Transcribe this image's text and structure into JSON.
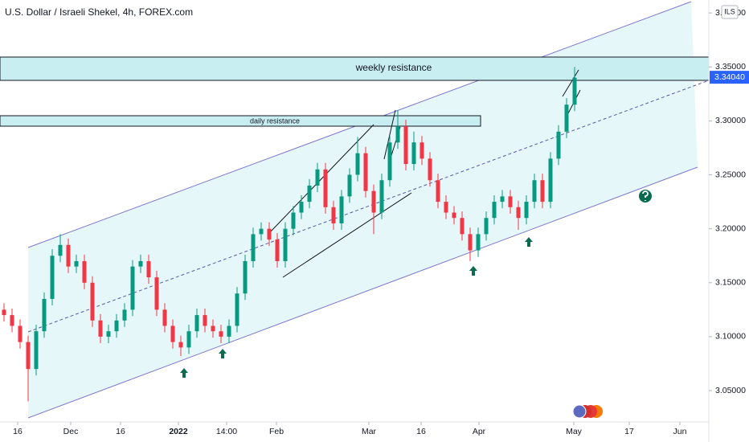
{
  "chart_data": {
    "type": "candlestick",
    "title": "U.S. Dollar / Israeli Shekel, 4h, FOREX.com",
    "currency": "ILS",
    "annotations": {
      "weekly": "weekly resistance",
      "daily": "daily resistance"
    },
    "up_color": "#089981",
    "down_color": "#f23645",
    "xlim": [
      -0.5,
      87.7
    ],
    "xticks": [
      {
        "value": 1.7,
        "label": "16"
      },
      {
        "value": 8.3,
        "label": "Dec"
      },
      {
        "value": 14.5,
        "label": "16"
      },
      {
        "value": 21.7,
        "label": "2022"
      },
      {
        "value": 27.7,
        "label": "14:00"
      },
      {
        "value": 33.9,
        "label": "Feb"
      },
      {
        "value": 45.4,
        "label": "Mar"
      },
      {
        "value": 51.9,
        "label": "16"
      },
      {
        "value": 59.1,
        "label": "Apr"
      },
      {
        "value": 70.9,
        "label": "May"
      },
      {
        "value": 77.8,
        "label": "17"
      },
      {
        "value": 84.1,
        "label": "Jun"
      }
    ],
    "ylim": [
      3.021,
      3.412
    ],
    "yticks": [
      {
        "value": 3.05,
        "label": "3.05000"
      },
      {
        "value": 3.1,
        "label": "3.10000"
      },
      {
        "value": 3.15,
        "label": "3.15000"
      },
      {
        "value": 3.2,
        "label": "3.20000"
      },
      {
        "value": 3.25,
        "label": "3.25000"
      },
      {
        "value": 3.3,
        "label": "3.30000"
      },
      {
        "value": 3.35,
        "label": "3.35000"
      },
      {
        "value": 3.4,
        "label": "3.40000"
      }
    ],
    "last_price": {
      "value": 3.3404,
      "label": "3.34040"
    },
    "candles": [
      [
        3.125,
        3.131,
        3.114,
        3.12
      ],
      [
        3.12,
        3.126,
        3.104,
        3.11
      ],
      [
        3.11,
        3.116,
        3.089,
        3.095
      ],
      [
        3.095,
        3.101,
        3.04,
        3.07
      ],
      [
        3.07,
        3.111,
        3.064,
        3.105
      ],
      [
        3.105,
        3.141,
        3.099,
        3.135
      ],
      [
        3.135,
        3.181,
        3.129,
        3.175
      ],
      [
        3.175,
        3.195,
        3.169,
        3.185
      ],
      [
        3.185,
        3.191,
        3.159,
        3.165
      ],
      [
        3.165,
        3.176,
        3.159,
        3.17
      ],
      [
        3.17,
        3.176,
        3.144,
        3.15
      ],
      [
        3.15,
        3.156,
        3.109,
        3.115
      ],
      [
        3.115,
        3.121,
        3.094,
        3.1
      ],
      [
        3.1,
        3.111,
        3.094,
        3.105
      ],
      [
        3.105,
        3.121,
        3.099,
        3.115
      ],
      [
        3.115,
        3.131,
        3.109,
        3.125
      ],
      [
        3.125,
        3.171,
        3.119,
        3.165
      ],
      [
        3.165,
        3.176,
        3.159,
        3.17
      ],
      [
        3.17,
        3.176,
        3.149,
        3.155
      ],
      [
        3.155,
        3.161,
        3.119,
        3.125
      ],
      [
        3.125,
        3.131,
        3.104,
        3.11
      ],
      [
        3.11,
        3.116,
        3.089,
        3.095
      ],
      [
        3.095,
        3.101,
        3.082,
        3.09
      ],
      [
        3.09,
        3.111,
        3.084,
        3.105
      ],
      [
        3.105,
        3.126,
        3.099,
        3.12
      ],
      [
        3.12,
        3.126,
        3.104,
        3.11
      ],
      [
        3.11,
        3.116,
        3.099,
        3.105
      ],
      [
        3.105,
        3.111,
        3.094,
        3.1
      ],
      [
        3.1,
        3.116,
        3.094,
        3.11
      ],
      [
        3.11,
        3.146,
        3.104,
        3.14
      ],
      [
        3.14,
        3.176,
        3.134,
        3.17
      ],
      [
        3.17,
        3.201,
        3.164,
        3.195
      ],
      [
        3.195,
        3.206,
        3.189,
        3.2
      ],
      [
        3.2,
        3.206,
        3.184,
        3.19
      ],
      [
        3.19,
        3.196,
        3.164,
        3.17
      ],
      [
        3.17,
        3.206,
        3.164,
        3.2
      ],
      [
        3.2,
        3.221,
        3.194,
        3.215
      ],
      [
        3.215,
        3.231,
        3.209,
        3.225
      ],
      [
        3.225,
        3.246,
        3.219,
        3.24
      ],
      [
        3.24,
        3.261,
        3.234,
        3.255
      ],
      [
        3.255,
        3.261,
        3.214,
        3.22
      ],
      [
        3.22,
        3.226,
        3.199,
        3.205
      ],
      [
        3.205,
        3.236,
        3.199,
        3.23
      ],
      [
        3.23,
        3.256,
        3.224,
        3.25
      ],
      [
        3.25,
        3.285,
        3.244,
        3.27
      ],
      [
        3.27,
        3.276,
        3.229,
        3.235
      ],
      [
        3.235,
        3.241,
        3.195,
        3.215
      ],
      [
        3.215,
        3.251,
        3.209,
        3.245
      ],
      [
        3.245,
        3.286,
        3.239,
        3.28
      ],
      [
        3.28,
        3.31,
        3.274,
        3.295
      ],
      [
        3.295,
        3.301,
        3.254,
        3.26
      ],
      [
        3.26,
        3.29,
        3.254,
        3.28
      ],
      [
        3.28,
        3.286,
        3.259,
        3.265
      ],
      [
        3.265,
        3.271,
        3.239,
        3.245
      ],
      [
        3.245,
        3.251,
        3.219,
        3.225
      ],
      [
        3.225,
        3.231,
        3.209,
        3.215
      ],
      [
        3.215,
        3.221,
        3.204,
        3.21
      ],
      [
        3.21,
        3.216,
        3.189,
        3.195
      ],
      [
        3.195,
        3.201,
        3.17,
        3.18
      ],
      [
        3.18,
        3.201,
        3.174,
        3.195
      ],
      [
        3.195,
        3.216,
        3.189,
        3.21
      ],
      [
        3.21,
        3.231,
        3.204,
        3.225
      ],
      [
        3.225,
        3.236,
        3.219,
        3.23
      ],
      [
        3.23,
        3.236,
        3.214,
        3.22
      ],
      [
        3.22,
        3.226,
        3.199,
        3.21
      ],
      [
        3.21,
        3.231,
        3.204,
        3.225
      ],
      [
        3.225,
        3.251,
        3.219,
        3.245
      ],
      [
        3.245,
        3.251,
        3.219,
        3.225
      ],
      [
        3.225,
        3.271,
        3.219,
        3.265
      ],
      [
        3.265,
        3.296,
        3.259,
        3.29
      ],
      [
        3.29,
        3.321,
        3.284,
        3.315
      ],
      [
        3.315,
        3.35,
        3.309,
        3.34
      ]
    ]
  }
}
